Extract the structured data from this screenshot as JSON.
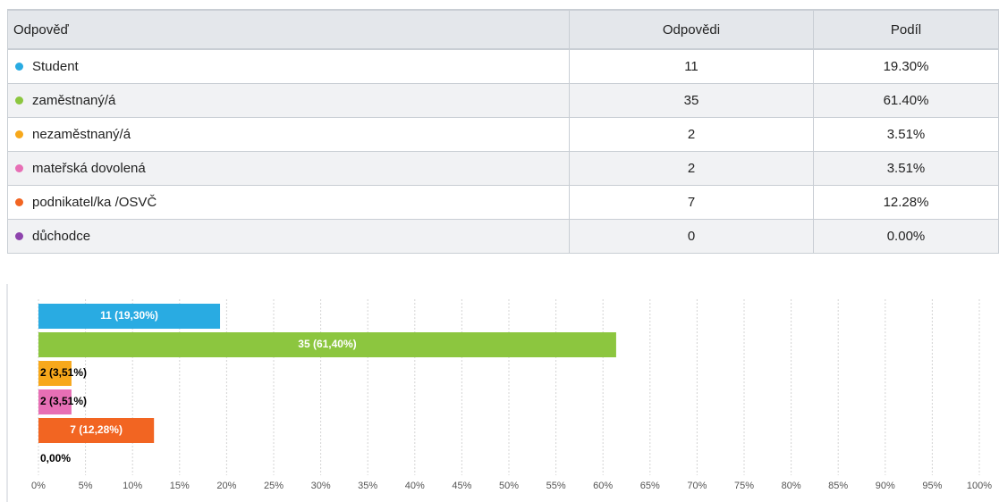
{
  "table": {
    "headers": [
      "Odpověď",
      "Odpovědi",
      "Podíl"
    ],
    "rows": [
      [
        "Student",
        11,
        "19.30%"
      ],
      [
        "zaměstnaný/á",
        35,
        "61.40%"
      ],
      [
        "nezaměstnaný/á",
        2,
        "3.51%"
      ],
      [
        "mateřská dovolená",
        2,
        "3.51%"
      ],
      [
        "podnikatel/ka /OSVČ",
        7,
        "12.28%"
      ],
      [
        "důchodce",
        0,
        "0.00%"
      ]
    ]
  },
  "chart_data": {
    "type": "bar",
    "orientation": "horizontal",
    "values": [
      19.3,
      61.4,
      3.51,
      3.51,
      12.28,
      0.0
    ],
    "value_labels": [
      "11 (19,30%)",
      "35 (61,40%)",
      "2 (3,51%)",
      "2 (3,51%)",
      "7 (12,28%)",
      "0,00%"
    ],
    "colors": [
      "#29abe2",
      "#8cc63f",
      "#f7a81b",
      "#e76fb5",
      "#f26522",
      "#8e44ad"
    ],
    "xlim": [
      0,
      100
    ],
    "xticks": [
      {
        "value": 0,
        "label": "0%"
      },
      {
        "value": 5,
        "label": "5%"
      },
      {
        "value": 10,
        "label": "10%"
      },
      {
        "value": 15,
        "label": "15%"
      },
      {
        "value": 20,
        "label": "20%"
      },
      {
        "value": 25,
        "label": "25%"
      },
      {
        "value": 30,
        "label": "30%"
      },
      {
        "value": 35,
        "label": "35%"
      },
      {
        "value": 40,
        "label": "40%"
      },
      {
        "value": 45,
        "label": "45%"
      },
      {
        "value": 50,
        "label": "50%"
      },
      {
        "value": 55,
        "label": "55%"
      },
      {
        "value": 60,
        "label": "60%"
      },
      {
        "value": 65,
        "label": "65%"
      },
      {
        "value": 70,
        "label": "70%"
      },
      {
        "value": 75,
        "label": "75%"
      },
      {
        "value": 80,
        "label": "80%"
      },
      {
        "value": 85,
        "label": "85%"
      },
      {
        "value": 90,
        "label": "90%"
      },
      {
        "value": 95,
        "label": "95%"
      },
      {
        "value": 100,
        "label": "100%"
      }
    ],
    "grid": true
  }
}
